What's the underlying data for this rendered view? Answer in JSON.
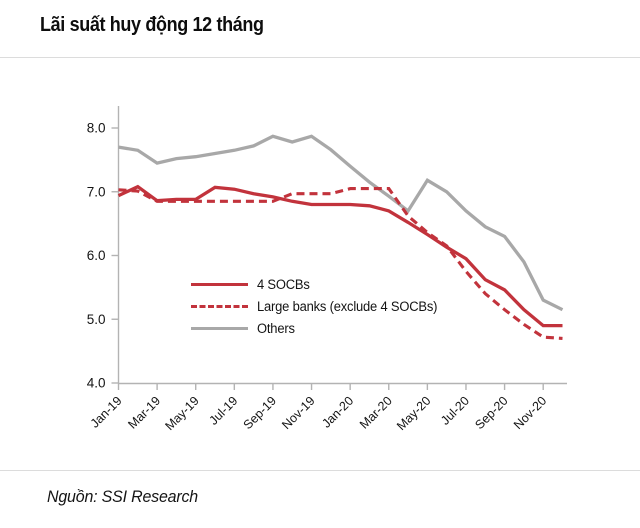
{
  "header": {
    "title": "Lãi suất huy động 12 tháng"
  },
  "footer": {
    "source_label": "Nguồn: SSI Research"
  },
  "colors": {
    "accent_red": "#c2333c",
    "series_gray": "#a8a8a8",
    "axis_gray": "#b3b3b3",
    "divider_gray": "#dcdcdc",
    "text_dark": "#141414"
  },
  "chart_data": {
    "type": "line",
    "title": "Lãi suất huy động 12 tháng",
    "xlabel": "",
    "ylabel": "",
    "ylim": [
      4.0,
      8.35
    ],
    "yticks": [
      8.0,
      7.0,
      6.0,
      5.0,
      4.0
    ],
    "grid": false,
    "legend_position": "inside bottom-left",
    "x": [
      "Jan-19",
      "Feb-19",
      "Mar-19",
      "Apr-19",
      "May-19",
      "Jun-19",
      "Jul-19",
      "Aug-19",
      "Sep-19",
      "Oct-19",
      "Nov-19",
      "Dec-19",
      "Jan-20",
      "Feb-20",
      "Mar-20",
      "Apr-20",
      "May-20",
      "Jun-20",
      "Jul-20",
      "Aug-20",
      "Sep-20",
      "Oct-20",
      "Nov-20",
      "Dec-20"
    ],
    "x_tick_labels": [
      "Jan-19",
      "Mar-19",
      "May-19",
      "Jul-19",
      "Sep-19",
      "Nov-19",
      "Jan-20",
      "Mar-20",
      "May-20",
      "Jul-20",
      "Sep-20",
      "Nov-20"
    ],
    "series": [
      {
        "name": "4 SOCBs",
        "color": "#c2333c",
        "dash": "solid",
        "values": [
          6.94,
          7.08,
          6.86,
          6.88,
          6.88,
          7.07,
          7.04,
          6.97,
          6.92,
          6.85,
          6.8,
          6.8,
          6.8,
          6.78,
          6.7,
          6.52,
          6.33,
          6.13,
          5.95,
          5.62,
          5.46,
          5.15,
          4.9,
          4.9
        ]
      },
      {
        "name": "Large banks (exclude 4 SOCBs)",
        "color": "#c2333c",
        "dash": "dashed",
        "values": [
          7.03,
          7.01,
          6.85,
          6.85,
          6.85,
          6.85,
          6.85,
          6.85,
          6.85,
          6.97,
          6.97,
          6.97,
          7.05,
          7.05,
          7.05,
          6.62,
          6.36,
          6.15,
          5.75,
          5.4,
          5.15,
          4.92,
          4.72,
          4.7
        ]
      },
      {
        "name": "Others",
        "color": "#a8a8a8",
        "dash": "solid",
        "values": [
          7.7,
          7.65,
          7.45,
          7.52,
          7.55,
          7.6,
          7.65,
          7.72,
          7.87,
          7.78,
          7.87,
          7.66,
          7.4,
          7.15,
          6.93,
          6.7,
          7.18,
          7.0,
          6.7,
          6.45,
          6.3,
          5.9,
          5.3,
          5.15
        ]
      }
    ]
  }
}
